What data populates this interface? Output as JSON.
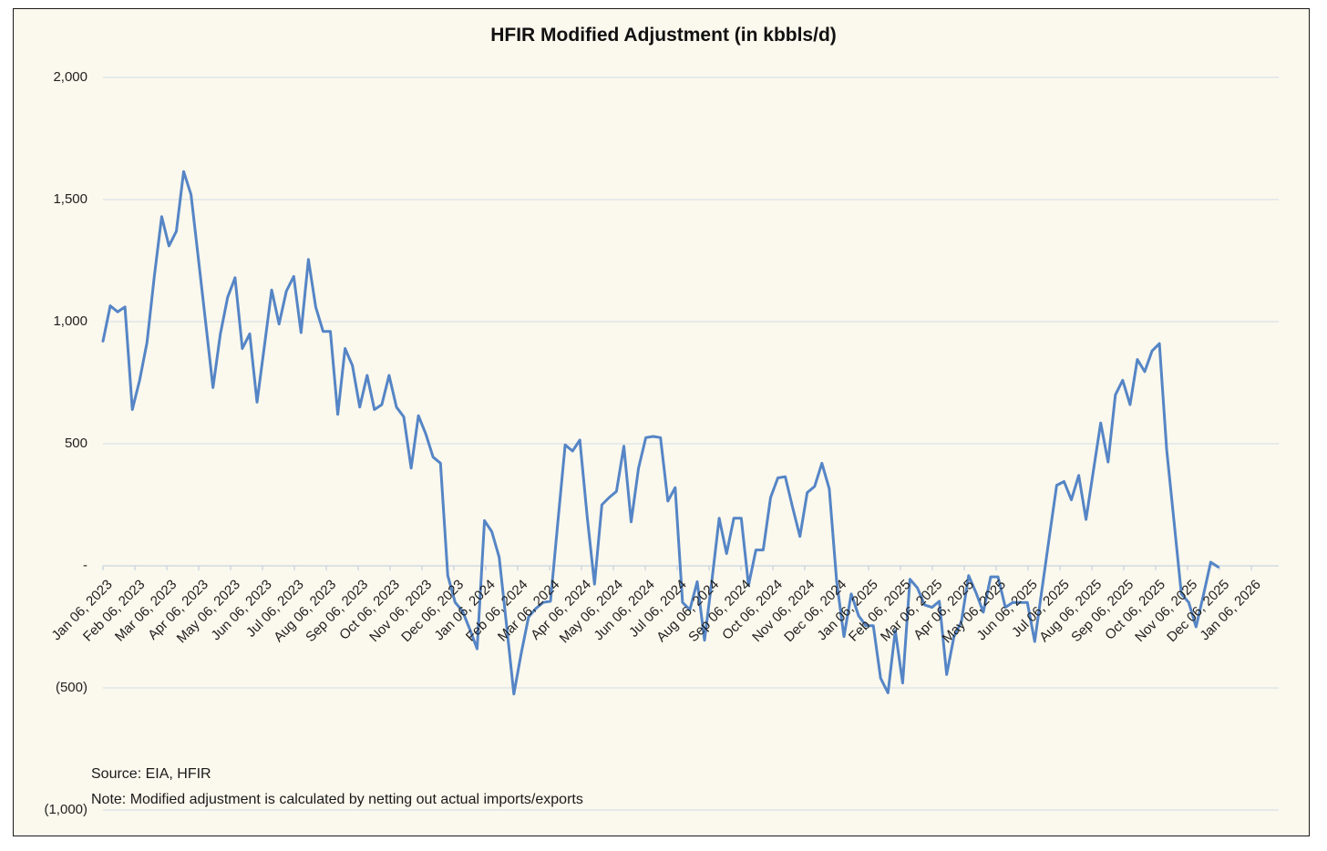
{
  "chart": {
    "title": "HFIR Modified Adjustment (in kbbls/d)",
    "source": "Source: EIA, HFIR",
    "note": "Note: Modified adjustment is calculated by netting out actual imports/exports"
  },
  "style": {
    "background": "#FBF8ED",
    "frame_border": "#1B1B1B",
    "gridline": "#D9E1E8",
    "axis_line": "#C9D4DE",
    "line_color": "#5585C6",
    "text_color": "#1F1F1F"
  },
  "chart_data": {
    "type": "line",
    "title": "HFIR Modified Adjustment (in kbbls/d)",
    "unit": "kbbls/d",
    "interval": "weekly",
    "legend": "none",
    "grid": "horizontal",
    "ylim": [
      -1000,
      2000
    ],
    "y_ticks": [
      {
        "value": 2000,
        "label": "2,000"
      },
      {
        "value": 1500,
        "label": "1,500"
      },
      {
        "value": 1000,
        "label": "1,000"
      },
      {
        "value": 500,
        "label": "500"
      },
      {
        "value": 0,
        "label": "-"
      },
      {
        "value": -500,
        "label": "(500)"
      },
      {
        "value": -1000,
        "label": "(1,000)"
      }
    ],
    "x_tick_labels": [
      "Jan 06, 2023",
      "Feb 06, 2023",
      "Mar 06, 2023",
      "Apr 06, 2023",
      "May 06, 2023",
      "Jun 06, 2023",
      "Jul 06, 2023",
      "Aug 06, 2023",
      "Sep 06, 2023",
      "Oct 06, 2023",
      "Nov 06, 2023",
      "Dec 06, 2023",
      "Jan 06, 2024",
      "Feb 06, 2024",
      "Mar 06, 2024",
      "Apr 06, 2024",
      "May 06, 2024",
      "Jun 06, 2024",
      "Jul 06, 2024",
      "Aug 06, 2024",
      "Sep 06, 2024",
      "Oct 06, 2024",
      "Nov 06, 2024",
      "Dec 06, 2024",
      "Jan 06, 2025",
      "Feb 06, 2025",
      "Mar 06, 2025",
      "Apr 06, 2025",
      "May 06, 2025",
      "Jun 06, 2025",
      "Jul 06, 2025",
      "Aug 06, 2025",
      "Sep 06, 2025",
      "Oct 06, 2025",
      "Nov 06, 2025",
      "Dec 06, 2025",
      "Jan 06, 2026"
    ],
    "series": [
      {
        "name": "HFIR Modified Adjustment",
        "first_point": "Jan 06, 2023",
        "color": "#5585C6",
        "values": [
          920,
          1065,
          1040,
          1060,
          640,
          760,
          915,
          1185,
          1430,
          1310,
          1370,
          1615,
          1520,
          1260,
          995,
          730,
          950,
          1100,
          1180,
          890,
          950,
          670,
          900,
          1130,
          990,
          1125,
          1185,
          955,
          1255,
          1060,
          960,
          960,
          620,
          890,
          820,
          650,
          780,
          640,
          660,
          780,
          650,
          610,
          400,
          615,
          540,
          445,
          420,
          -40,
          -150,
          -185,
          -260,
          -340,
          185,
          140,
          35,
          -240,
          -525,
          -360,
          -210,
          -175,
          -150,
          -145,
          180,
          495,
          470,
          515,
          200,
          -75,
          250,
          280,
          305,
          490,
          180,
          400,
          525,
          530,
          525,
          265,
          320,
          -150,
          -180,
          -65,
          -305,
          -60,
          195,
          50,
          195,
          195,
          -80,
          65,
          65,
          280,
          360,
          365,
          240,
          120,
          300,
          325,
          420,
          315,
          -60,
          -290,
          -115,
          -205,
          -245,
          -245,
          -460,
          -520,
          -265,
          -480,
          -55,
          -90,
          -160,
          -170,
          -145,
          -445,
          -290,
          -230,
          -40,
          -110,
          -190,
          -45,
          -45,
          -170,
          -150,
          -150,
          -150,
          -310,
          -95,
          120,
          330,
          345,
          270,
          370,
          190,
          390,
          585,
          425,
          700,
          760,
          660,
          845,
          795,
          880,
          910,
          475,
          180,
          -115,
          -150,
          -250,
          -120,
          15,
          -5
        ]
      }
    ]
  }
}
